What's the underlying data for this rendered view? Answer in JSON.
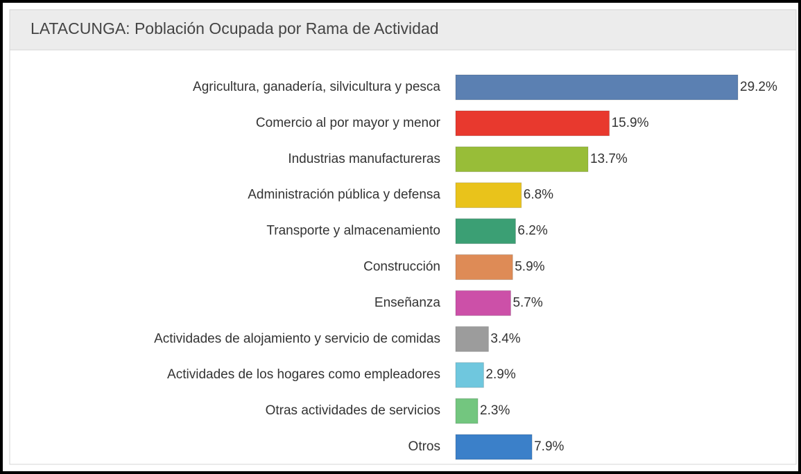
{
  "chart_data": {
    "type": "hbar",
    "title": "LATACUNGA: Población Ocupada por Rama de Actividad",
    "categories": [
      "Agricultura, ganadería, silvicultura y pesca",
      "Comercio al por mayor y menor",
      "Industrias manufactureras",
      "Administración pública y defensa",
      "Transporte y almacenamiento",
      "Construcción",
      "Enseñanza",
      "Actividades de alojamiento y servicio de comidas",
      "Actividades de los hogares como empleadores",
      "Otras actividades de servicios",
      "Otros"
    ],
    "values": [
      29.2,
      15.9,
      13.7,
      6.8,
      6.2,
      5.9,
      5.7,
      3.4,
      2.9,
      2.3,
      7.9
    ],
    "value_labels": [
      "29.2%",
      "15.9%",
      "13.7%",
      "6.8%",
      "6.2%",
      "5.9%",
      "5.7%",
      "3.4%",
      "2.9%",
      "2.3%",
      "7.9%"
    ],
    "colors": [
      "#5b80b2",
      "#e8392e",
      "#98bd38",
      "#e9c31b",
      "#3b9f74",
      "#de8b56",
      "#cc50a8",
      "#9c9c9c",
      "#6fc7de",
      "#73c67f",
      "#3b80c9"
    ]
  }
}
